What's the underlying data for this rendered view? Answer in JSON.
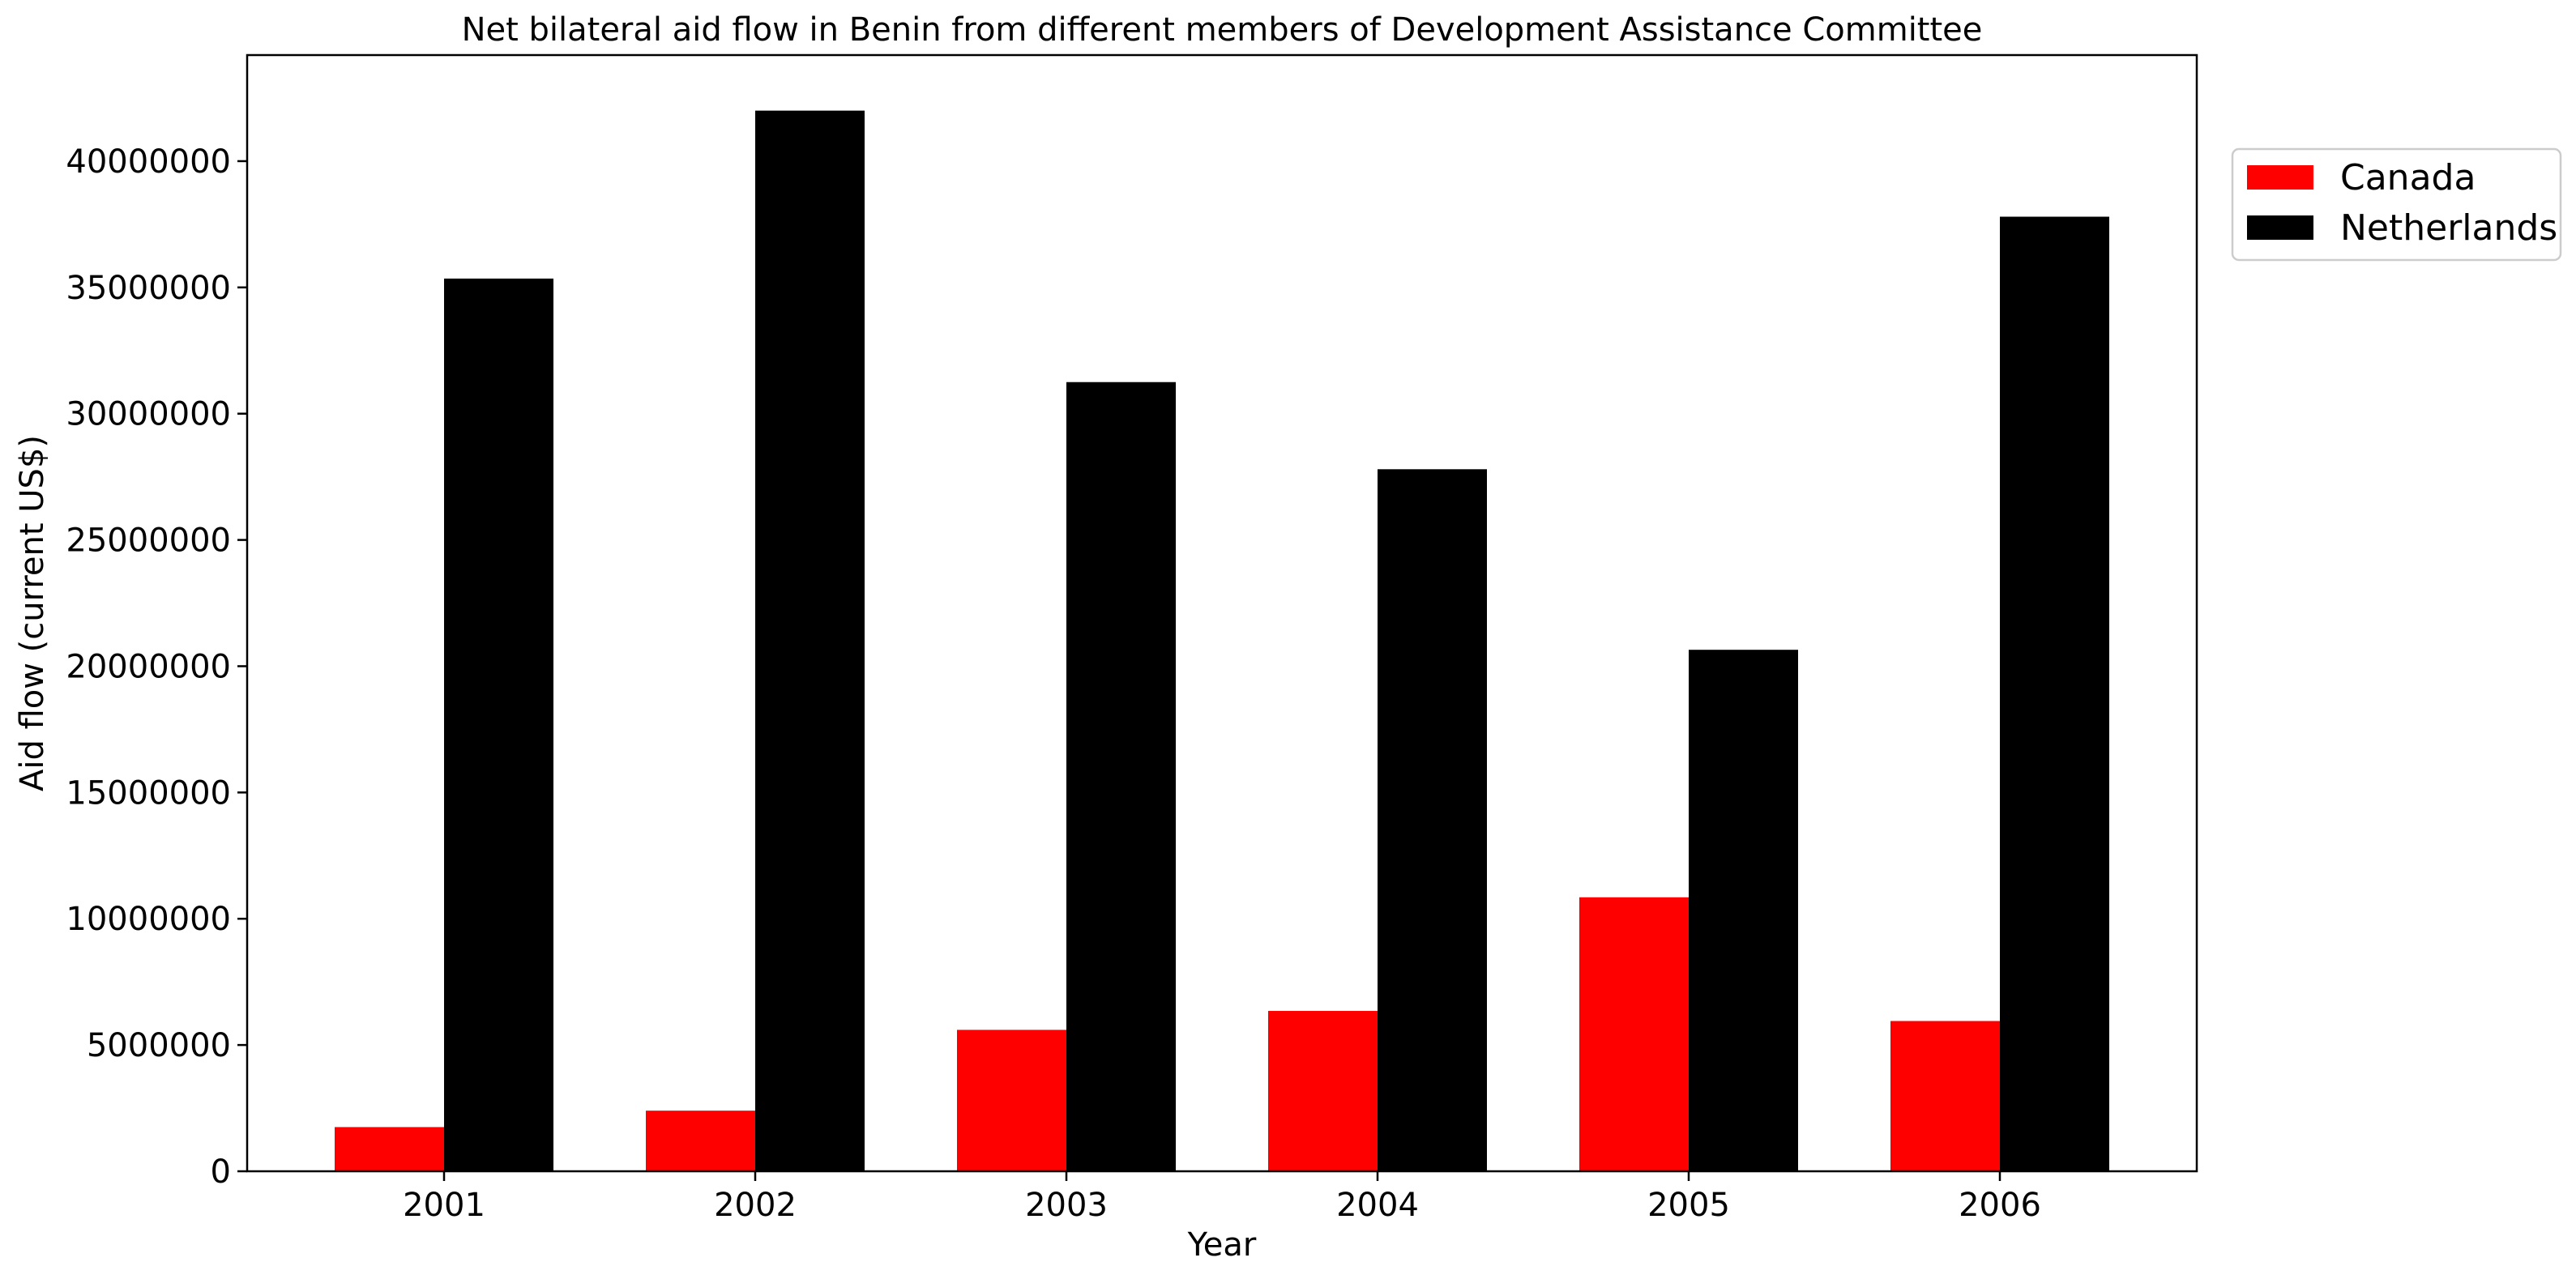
{
  "chart_data": {
    "type": "bar",
    "title": "Net bilateral aid flow in Benin from different members of Development Assistance Committee",
    "xlabel": "Year",
    "ylabel": "Aid flow (current US$)",
    "categories": [
      "2001",
      "2002",
      "2003",
      "2004",
      "2005",
      "2006"
    ],
    "series": [
      {
        "name": "Canada",
        "color": "#ff0000",
        "values": [
          1750000,
          2400000,
          5600000,
          6350000,
          10850000,
          5950000
        ]
      },
      {
        "name": "Netherlands",
        "color": "#000000",
        "values": [
          35350000,
          42000000,
          31250000,
          27800000,
          20650000,
          37800000
        ]
      }
    ],
    "ylim": [
      0,
      44200000
    ],
    "yticks": [
      0,
      5000000,
      10000000,
      15000000,
      20000000,
      25000000,
      30000000,
      35000000,
      40000000
    ],
    "grid": false,
    "legend_position": "upper-right-outside"
  }
}
